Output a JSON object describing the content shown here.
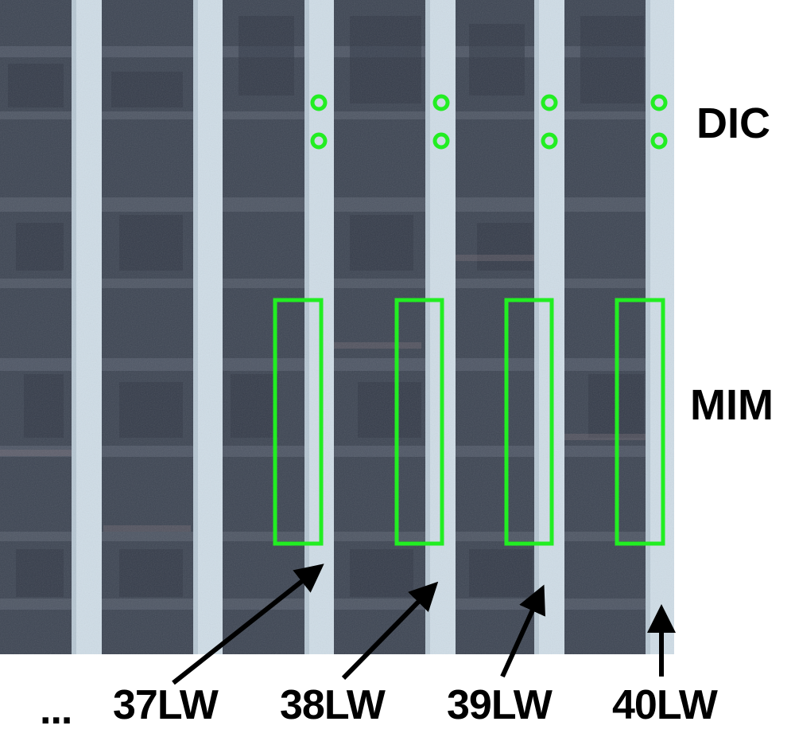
{
  "labels": {
    "dic": "DIC",
    "mim": "MIM",
    "ellipsis": "...",
    "walls": [
      "37LW",
      "38LW",
      "39LW",
      "40LW"
    ]
  },
  "colors": {
    "marker": "#22ee22",
    "arrow": "#000000",
    "label": "#000000",
    "background": "#ffffff",
    "rock": "#3c4452",
    "wall": "#cfdde7"
  }
}
